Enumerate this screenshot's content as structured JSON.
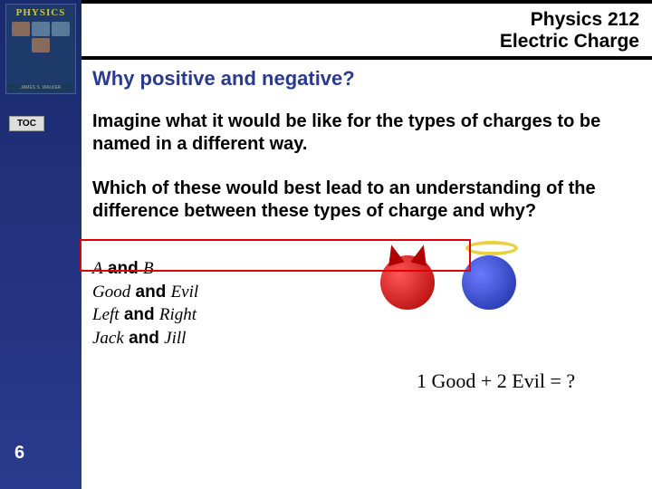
{
  "sidebar": {
    "book_title": "PHYSICS",
    "book_author": "JAMES S. WALKER",
    "toc_label": "TOC",
    "page_number": "6",
    "bg_color": "#2a3a8e"
  },
  "header": {
    "course": "Physics 212",
    "topic": "Electric Charge"
  },
  "content": {
    "title": "Why positive and negative?",
    "para1": "Imagine what it would be like for the types of charges to  be named in a different way.",
    "para2": "Which of these would best lead to an understanding of the difference between these types of charge and why?",
    "options": [
      {
        "left": "A",
        "conj": "and",
        "right": "B"
      },
      {
        "left": "Good",
        "conj": "and",
        "right": "Evil"
      },
      {
        "left": "Left",
        "conj": "and",
        "right": "Right"
      },
      {
        "left": "Jack",
        "conj": "and",
        "right": "Jill"
      }
    ],
    "equation": "1 Good + 2 Evil = ?",
    "highlight_box_color": "#e00000"
  },
  "figures": {
    "devil_color": "#cc0000",
    "angel_color": "#2a3aae",
    "halo_color": "#e8d040"
  }
}
